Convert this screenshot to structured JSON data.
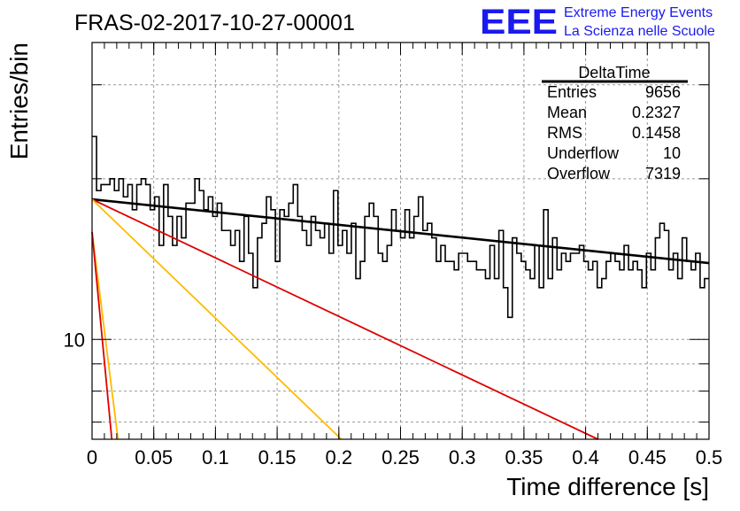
{
  "chart_data": {
    "type": "histogram",
    "title": "FRAS-02-2017-10-27-00001",
    "xlabel": "Time difference [s]",
    "ylabel": "Entries/bin",
    "x_range": [
      0,
      0.5
    ],
    "y_scale": "log",
    "y_range": [
      6.5,
      36
    ],
    "x_ticks": [
      "0",
      "0.05",
      "0.1",
      "0.15",
      "0.2",
      "0.25",
      "0.3",
      "0.35",
      "0.4",
      "0.45",
      "0.5"
    ],
    "y_tick_labels": [
      "10"
    ],
    "grid": true,
    "bin_width": 0.005,
    "histogram_values": [
      24,
      19,
      19.5,
      19.5,
      20,
      19,
      20,
      18.5,
      19.5,
      17.5,
      19.5,
      20,
      19.5,
      17.5,
      18.5,
      15,
      19.5,
      17,
      15,
      17,
      15.5,
      18,
      18,
      20,
      19,
      17.5,
      18.5,
      17,
      18,
      16,
      16,
      15,
      16,
      14,
      17,
      14.5,
      12.5,
      15.5,
      16.5,
      18.5,
      17.5,
      14,
      17.5,
      17,
      18,
      19.5,
      17,
      16,
      15,
      17,
      16,
      15.5,
      16.5,
      14.5,
      19,
      15,
      16,
      14.5,
      16.5,
      13,
      14,
      17,
      18,
      17,
      14.5,
      14,
      15,
      17.5,
      16,
      15.5,
      17.5,
      15.5,
      17,
      18.5,
      16,
      16.5,
      15.5,
      14,
      15,
      14,
      14,
      13.5,
      14.5,
      14.5,
      14,
      14,
      13.5,
      13.5,
      13,
      15,
      13,
      16,
      12.5,
      11,
      15.5,
      14.5,
      14,
      13.5,
      13,
      15,
      12.5,
      17.5,
      13,
      15.5,
      13.5,
      14.5,
      14,
      14.5,
      14.5,
      15,
      14,
      13.5,
      14,
      12.5,
      13,
      14,
      14.5,
      14,
      13.5,
      15,
      13.5,
      14,
      13.5,
      12.5,
      14.5,
      13.5,
      15.5,
      16.5,
      16,
      13.5,
      14.5,
      13,
      15.5,
      14,
      13.5,
      14.5,
      12.5,
      13
    ],
    "series": [
      {
        "color": "#000000",
        "start": [
          0,
          18.3
        ],
        "end": [
          0.5,
          13.9
        ]
      },
      {
        "color": "#dd0000",
        "start": [
          0,
          18.3
        ],
        "end": [
          0.41,
          6.5
        ]
      },
      {
        "color": "#ffbb00",
        "start": [
          0,
          18.3
        ],
        "end": [
          0.202,
          6.5
        ]
      },
      {
        "color": "#ffbb00",
        "start": [
          0,
          15.9
        ],
        "end": [
          0.021,
          6.5
        ]
      },
      {
        "color": "#dd0000",
        "start": [
          0,
          15.9
        ],
        "end": [
          0.016,
          6.5
        ]
      }
    ],
    "stats_box": {
      "title": "DeltaTime",
      "rows": [
        {
          "label": "Entries",
          "value": "9656"
        },
        {
          "label": "Mean",
          "value": "0.2327"
        },
        {
          "label": "RMS",
          "value": "0.1458"
        },
        {
          "label": "Underflow",
          "value": "10"
        },
        {
          "label": "Overflow",
          "value": "7319"
        }
      ]
    },
    "logo": {
      "text": "EEE",
      "line1": "Extreme Energy Events",
      "line2": "La Scienza nelle Scuole",
      "color": "#1a1aee"
    }
  }
}
